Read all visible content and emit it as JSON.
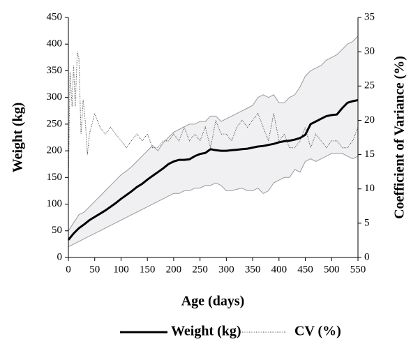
{
  "chart_data": {
    "type": "line",
    "x_label": "Age (days)",
    "y_label": "Weight (kg)",
    "y2_label": "Coefficient of Variance (%)",
    "xlim": [
      0,
      550
    ],
    "xticks": [
      0,
      50,
      100,
      150,
      200,
      250,
      300,
      350,
      400,
      450,
      500,
      550
    ],
    "ylim": [
      0,
      450
    ],
    "yticks": [
      0,
      50,
      100,
      150,
      200,
      250,
      300,
      350,
      400,
      450
    ],
    "y2lim": [
      0,
      35
    ],
    "y2ticks": [
      0,
      5,
      10,
      15,
      20,
      25,
      30,
      35
    ],
    "legend": "bottom",
    "series": [
      {
        "name": "Weight (kg)",
        "color": "#000000",
        "band_color": "#f0f0f3",
        "band_line_color": "#999999",
        "x": [
          0,
          10,
          20,
          30,
          40,
          50,
          60,
          70,
          80,
          90,
          100,
          110,
          120,
          130,
          140,
          150,
          160,
          170,
          180,
          190,
          200,
          210,
          220,
          230,
          240,
          250,
          260,
          270,
          280,
          290,
          300,
          310,
          320,
          330,
          340,
          350,
          360,
          370,
          380,
          390,
          400,
          410,
          420,
          430,
          440,
          450,
          460,
          470,
          480,
          490,
          500,
          510,
          520,
          530,
          540,
          550
        ],
        "values": [
          33,
          45,
          55,
          62,
          70,
          76,
          82,
          88,
          95,
          102,
          110,
          117,
          124,
          132,
          138,
          146,
          153,
          160,
          167,
          175,
          180,
          183,
          183,
          184,
          190,
          194,
          196,
          203,
          201,
          200,
          200,
          201,
          202,
          203,
          204,
          206,
          208,
          209,
          211,
          213,
          216,
          218,
          219,
          221,
          224,
          230,
          250,
          255,
          260,
          265,
          267,
          268,
          280,
          290,
          293,
          295
        ],
        "upper": [
          50,
          65,
          80,
          85,
          95,
          105,
          115,
          125,
          135,
          145,
          155,
          162,
          170,
          180,
          190,
          200,
          210,
          200,
          215,
          225,
          235,
          240,
          245,
          250,
          250,
          255,
          255,
          265,
          265,
          255,
          260,
          265,
          270,
          275,
          280,
          285,
          300,
          305,
          300,
          305,
          290,
          290,
          300,
          305,
          320,
          340,
          350,
          355,
          360,
          370,
          375,
          380,
          390,
          400,
          405,
          415
        ],
        "lower": [
          20,
          25,
          30,
          35,
          40,
          45,
          50,
          55,
          60,
          65,
          70,
          75,
          80,
          85,
          90,
          95,
          100,
          105,
          110,
          115,
          120,
          120,
          125,
          125,
          130,
          130,
          135,
          135,
          140,
          135,
          125,
          125,
          128,
          130,
          125,
          125,
          130,
          120,
          125,
          140,
          145,
          150,
          150,
          165,
          160,
          180,
          185,
          180,
          185,
          190,
          195,
          195,
          195,
          190,
          185,
          190
        ]
      },
      {
        "name": "CV (%)",
        "color": "#444444",
        "axis": "y2",
        "dash": "1,1.5",
        "x": [
          0,
          3,
          7,
          10,
          13,
          17,
          20,
          24,
          28,
          32,
          36,
          40,
          50,
          60,
          70,
          80,
          90,
          100,
          110,
          120,
          130,
          140,
          150,
          160,
          170,
          180,
          190,
          200,
          210,
          220,
          230,
          240,
          250,
          260,
          270,
          280,
          290,
          300,
          310,
          320,
          330,
          340,
          350,
          360,
          370,
          380,
          390,
          400,
          410,
          420,
          430,
          440,
          450,
          460,
          470,
          480,
          490,
          500,
          510,
          520,
          530,
          540,
          550
        ],
        "values": [
          10,
          27,
          22,
          28,
          22,
          30,
          29,
          18,
          23,
          20,
          15,
          18,
          21,
          19,
          18,
          19,
          18,
          17,
          16,
          17,
          18,
          17,
          18,
          16,
          16,
          17,
          17,
          18,
          17,
          19,
          17,
          18,
          17,
          19,
          16,
          20,
          18,
          18,
          17,
          19,
          20,
          19,
          20,
          21,
          19,
          17,
          21,
          17,
          18,
          16,
          16,
          17,
          19,
          16,
          18,
          17,
          16,
          17,
          17,
          16,
          16,
          17,
          19
        ]
      }
    ]
  }
}
